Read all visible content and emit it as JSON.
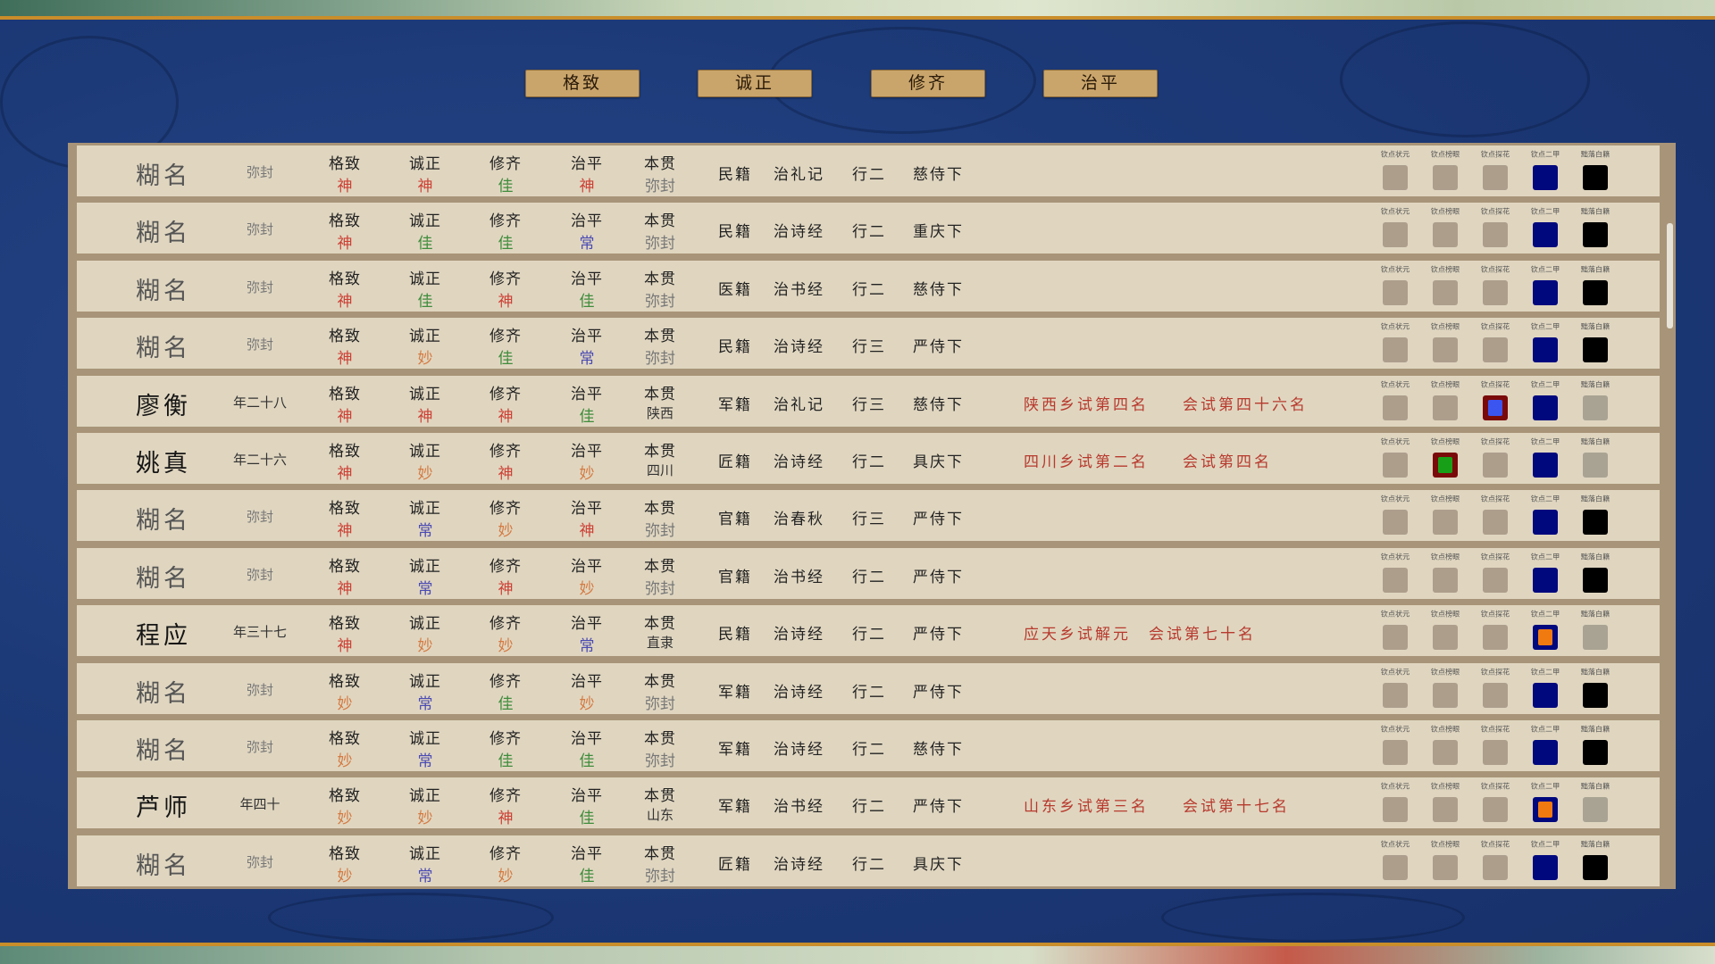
{
  "tabs": [
    "格致",
    "诚正",
    "修齐",
    "治平"
  ],
  "labels": {
    "gezhi": "格致",
    "chengzheng": "诚正",
    "xiuqi": "修齐",
    "zhiping": "治平",
    "origin": "本贯"
  },
  "rank_labels": [
    "钦点状元",
    "钦点榜眼",
    "钦点探花",
    "钦点二甲",
    "黜落白籍"
  ],
  "grade_colors": {
    "神": "#cc4035",
    "佳": "#3f8c3c",
    "妙": "#d47a42",
    "常": "#4a4ab4"
  },
  "rows": [
    {
      "name": "糊名",
      "age": "弥封",
      "grades": [
        "神",
        "神",
        "佳",
        "神"
      ],
      "origin": "弥封",
      "ji": "民籍",
      "jing": "治礼记",
      "hang": "行二",
      "family": "慈侍下",
      "exam1": "",
      "exam2": "",
      "ranks": [
        "gray",
        "gray",
        "gray",
        "blue",
        "black"
      ]
    },
    {
      "name": "糊名",
      "age": "弥封",
      "grades": [
        "神",
        "佳",
        "佳",
        "常"
      ],
      "origin": "弥封",
      "ji": "民籍",
      "jing": "治诗经",
      "hang": "行二",
      "family": "重庆下",
      "exam1": "",
      "exam2": "",
      "ranks": [
        "gray",
        "gray",
        "gray",
        "blue",
        "black"
      ]
    },
    {
      "name": "糊名",
      "age": "弥封",
      "grades": [
        "神",
        "佳",
        "神",
        "佳"
      ],
      "origin": "弥封",
      "ji": "医籍",
      "jing": "治书经",
      "hang": "行二",
      "family": "慈侍下",
      "exam1": "",
      "exam2": "",
      "ranks": [
        "gray",
        "gray",
        "gray",
        "blue",
        "black"
      ]
    },
    {
      "name": "糊名",
      "age": "弥封",
      "grades": [
        "神",
        "妙",
        "佳",
        "常"
      ],
      "origin": "弥封",
      "ji": "民籍",
      "jing": "治诗经",
      "hang": "行三",
      "family": "严侍下",
      "exam1": "",
      "exam2": "",
      "ranks": [
        "gray",
        "gray",
        "gray",
        "blue",
        "black"
      ]
    },
    {
      "name": "廖衡",
      "age": "年二十八",
      "grades": [
        "神",
        "神",
        "神",
        "佳"
      ],
      "origin": "陕西",
      "ji": "军籍",
      "jing": "治礼记",
      "hang": "行三",
      "family": "慈侍下",
      "exam1": "陕西乡试第四名",
      "exam2": "会试第四十六名",
      "ranks": [
        "gray",
        "gray",
        "red-blue",
        "blue",
        "light"
      ]
    },
    {
      "name": "姚真",
      "age": "年二十六",
      "grades": [
        "神",
        "妙",
        "神",
        "妙"
      ],
      "origin": "四川",
      "ji": "匠籍",
      "jing": "治诗经",
      "hang": "行二",
      "family": "具庆下",
      "exam1": "四川乡试第二名",
      "exam2": "会试第四名",
      "ranks": [
        "gray",
        "red-green",
        "gray",
        "blue",
        "light"
      ]
    },
    {
      "name": "糊名",
      "age": "弥封",
      "grades": [
        "神",
        "常",
        "妙",
        "神"
      ],
      "origin": "弥封",
      "ji": "官籍",
      "jing": "治春秋",
      "hang": "行三",
      "family": "严侍下",
      "exam1": "",
      "exam2": "",
      "ranks": [
        "gray",
        "gray",
        "gray",
        "blue",
        "black"
      ]
    },
    {
      "name": "糊名",
      "age": "弥封",
      "grades": [
        "神",
        "常",
        "神",
        "妙"
      ],
      "origin": "弥封",
      "ji": "官籍",
      "jing": "治书经",
      "hang": "行二",
      "family": "严侍下",
      "exam1": "",
      "exam2": "",
      "ranks": [
        "gray",
        "gray",
        "gray",
        "blue",
        "black"
      ]
    },
    {
      "name": "程应",
      "age": "年三十七",
      "grades": [
        "神",
        "妙",
        "妙",
        "常"
      ],
      "origin": "直隶",
      "ji": "民籍",
      "jing": "治诗经",
      "hang": "行二",
      "family": "严侍下",
      "exam1": "应天乡试解元",
      "exam2": "会试第七十名",
      "ranks": [
        "gray",
        "gray",
        "gray",
        "blue-orange",
        "light"
      ]
    },
    {
      "name": "糊名",
      "age": "弥封",
      "grades": [
        "妙",
        "常",
        "佳",
        "妙"
      ],
      "origin": "弥封",
      "ji": "军籍",
      "jing": "治诗经",
      "hang": "行二",
      "family": "严侍下",
      "exam1": "",
      "exam2": "",
      "ranks": [
        "gray",
        "gray",
        "gray",
        "blue",
        "black"
      ]
    },
    {
      "name": "糊名",
      "age": "弥封",
      "grades": [
        "妙",
        "常",
        "佳",
        "佳"
      ],
      "origin": "弥封",
      "ji": "军籍",
      "jing": "治诗经",
      "hang": "行二",
      "family": "慈侍下",
      "exam1": "",
      "exam2": "",
      "ranks": [
        "gray",
        "gray",
        "gray",
        "blue",
        "black"
      ]
    },
    {
      "name": "芦师",
      "age": "年四十",
      "grades": [
        "妙",
        "妙",
        "神",
        "佳"
      ],
      "origin": "山东",
      "ji": "军籍",
      "jing": "治书经",
      "hang": "行二",
      "family": "严侍下",
      "exam1": "山东乡试第三名",
      "exam2": "会试第十七名",
      "ranks": [
        "gray",
        "gray",
        "gray",
        "blue-orange",
        "light"
      ]
    },
    {
      "name": "糊名",
      "age": "弥封",
      "grades": [
        "妙",
        "常",
        "妙",
        "佳"
      ],
      "origin": "弥封",
      "ji": "匠籍",
      "jing": "治诗经",
      "hang": "行二",
      "family": "具庆下",
      "exam1": "",
      "exam2": "",
      "ranks": [
        "gray",
        "gray",
        "gray",
        "blue",
        "black"
      ]
    }
  ]
}
